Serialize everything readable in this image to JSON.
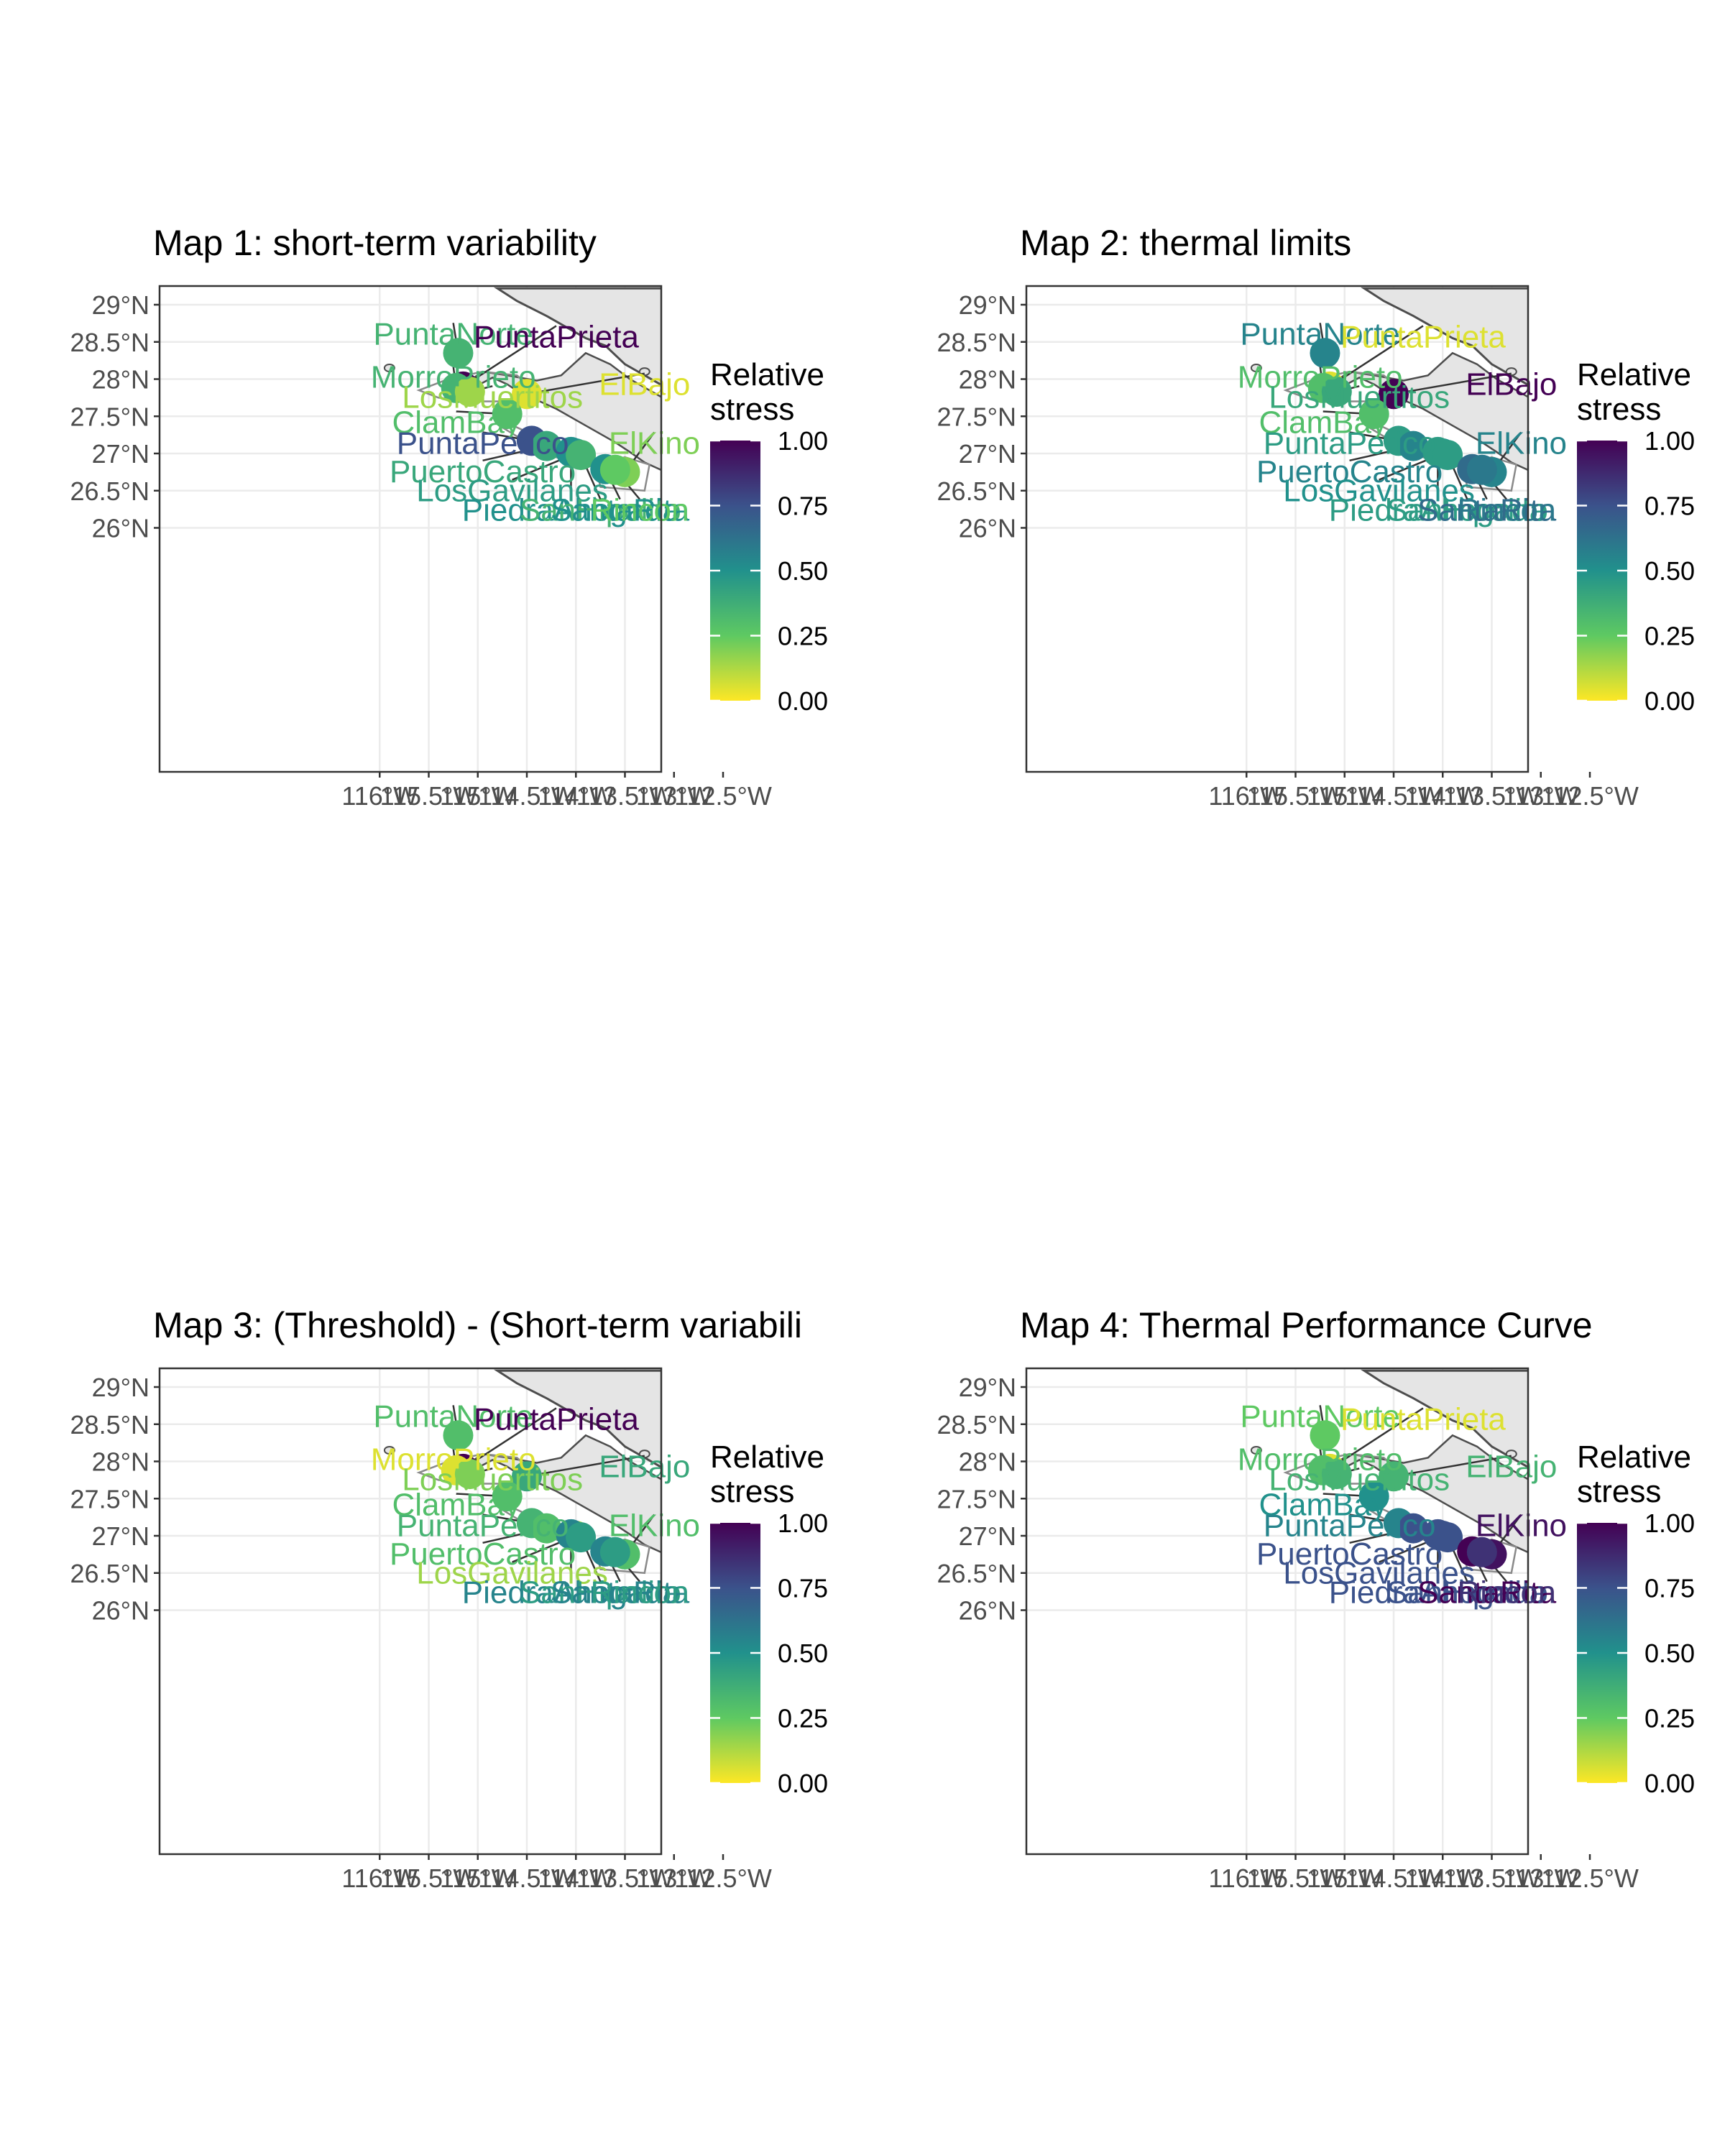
{
  "legend": {
    "title_line1": "Relative",
    "title_line2": "stress",
    "ticks": [
      "1.00",
      "0.75",
      "0.50",
      "0.25",
      "0.00"
    ]
  },
  "axes": {
    "y_ticks": [
      "29°N",
      "28.5°N",
      "28°N",
      "27.5°N",
      "27°N",
      "26.5°N",
      "26°N"
    ],
    "x_ticks": [
      "116°W",
      "115.5°W",
      "115°W",
      "114.5°W",
      "114°W",
      "113.5°W",
      "113°W",
      "112.5°W"
    ]
  },
  "colors": {
    "viridis": [
      "#fde725",
      "#5ec962",
      "#21918c",
      "#3b528b",
      "#440154"
    ],
    "land": "#e5e5e5",
    "coast": "#4d4d4d",
    "grid": "#ebebeb"
  },
  "chart_data": [
    {
      "type": "map-scatter",
      "title": "Map 1: short-term variability",
      "sites": [
        {
          "name": "PuntaNorte",
          "value": 0.35
        },
        {
          "name": "PuntaPrieta",
          "value": 1.0
        },
        {
          "name": "MorroPrieto",
          "value": 0.35
        },
        {
          "name": "LosMuertitos",
          "value": 0.15
        },
        {
          "name": "ElBajo",
          "value": 0.05
        },
        {
          "name": "ClamBay",
          "value": 0.3
        },
        {
          "name": "PuntaPerico",
          "value": 0.75
        },
        {
          "name": "PuertoCastro",
          "value": 0.4
        },
        {
          "name": "LosGavilanes",
          "value": 0.45
        },
        {
          "name": "PiedraAhogada",
          "value": 0.5
        },
        {
          "name": "SanHipolito",
          "value": 0.35
        },
        {
          "name": "SantaRita",
          "value": 0.5
        },
        {
          "name": "ElKino",
          "value": 0.2
        },
        {
          "name": "Rincon",
          "value": 0.25
        }
      ]
    },
    {
      "type": "map-scatter",
      "title": "Map 2: thermal limits",
      "sites": [
        {
          "name": "PuntaNorte",
          "value": 0.55
        },
        {
          "name": "PuntaPrieta",
          "value": 0.05
        },
        {
          "name": "MorroPrieto",
          "value": 0.3
        },
        {
          "name": "LosMuertitos",
          "value": 0.4
        },
        {
          "name": "ElBajo",
          "value": 1.0
        },
        {
          "name": "ClamBay",
          "value": 0.3
        },
        {
          "name": "PuntaPerico",
          "value": 0.45
        },
        {
          "name": "PuertoCastro",
          "value": 0.55
        },
        {
          "name": "LosGavilanes",
          "value": 0.5
        },
        {
          "name": "PiedraAhogada",
          "value": 0.45
        },
        {
          "name": "SanHipolito",
          "value": 0.45
        },
        {
          "name": "SantaRita",
          "value": 0.65
        },
        {
          "name": "ElKino",
          "value": 0.55
        },
        {
          "name": "Rincon",
          "value": 0.6
        }
      ]
    },
    {
      "type": "map-scatter",
      "title": "Map 3: (Threshold) - (Short-term variabili",
      "sites": [
        {
          "name": "PuntaNorte",
          "value": 0.3
        },
        {
          "name": "PuntaPrieta",
          "value": 1.0
        },
        {
          "name": "MorroPrieto",
          "value": 0.05
        },
        {
          "name": "LosMuertitos",
          "value": 0.2
        },
        {
          "name": "ElBajo",
          "value": 0.4
        },
        {
          "name": "ClamBay",
          "value": 0.3
        },
        {
          "name": "PuntaPerico",
          "value": 0.35
        },
        {
          "name": "PuertoCastro",
          "value": 0.3
        },
        {
          "name": "LosGavilanes",
          "value": 0.15
        },
        {
          "name": "PiedraAhogada",
          "value": 0.55
        },
        {
          "name": "SanHipolito",
          "value": 0.45
        },
        {
          "name": "SantaRita",
          "value": 0.55
        },
        {
          "name": "ElKino",
          "value": 0.3
        },
        {
          "name": "Rincon",
          "value": 0.45
        }
      ]
    },
    {
      "type": "map-scatter",
      "title": "Map 4: Thermal Performance Curve",
      "sites": [
        {
          "name": "PuntaNorte",
          "value": 0.25
        },
        {
          "name": "PuntaPrieta",
          "value": 0.05
        },
        {
          "name": "MorroPrieto",
          "value": 0.3
        },
        {
          "name": "LosMuertitos",
          "value": 0.35
        },
        {
          "name": "ElBajo",
          "value": 0.35
        },
        {
          "name": "ClamBay",
          "value": 0.5
        },
        {
          "name": "PuntaPerico",
          "value": 0.55
        },
        {
          "name": "PuertoCastro",
          "value": 0.75
        },
        {
          "name": "LosGavilanes",
          "value": 0.75
        },
        {
          "name": "PiedraAhogada",
          "value": 0.75
        },
        {
          "name": "SanHipolito",
          "value": 0.75
        },
        {
          "name": "SantaRita",
          "value": 1.0
        },
        {
          "name": "ElKino",
          "value": 0.95
        },
        {
          "name": "Rincon",
          "value": 0.85
        }
      ]
    }
  ]
}
